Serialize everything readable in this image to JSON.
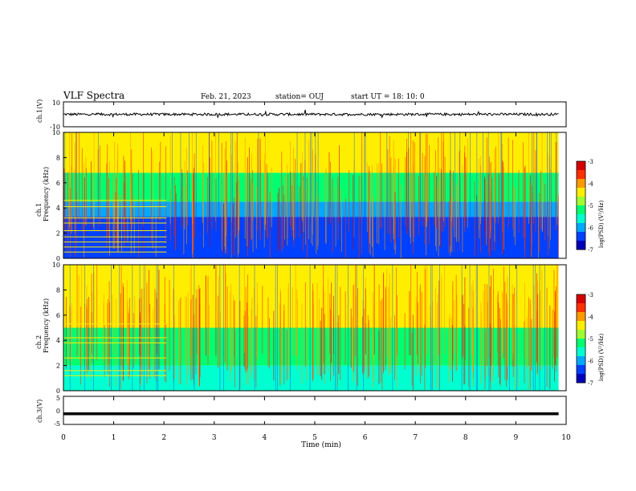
{
  "header": {
    "title": "VLF Spectra",
    "date": "Feb. 21, 2023",
    "station": "station= OUJ",
    "start": "start  UT  =   18: 10: 0"
  },
  "colorbar": {
    "label": "log(PSD) (V²/Hz)",
    "ticks": [
      "-3",
      "-4",
      "-5",
      "-6",
      "-7"
    ],
    "colors": [
      "#d40000",
      "#ff3000",
      "#ff9a00",
      "#ffee00",
      "#9fff30",
      "#00ff70",
      "#00ffd0",
      "#00a8ff",
      "#0040ff",
      "#0000b8"
    ]
  },
  "chart_data": [
    {
      "type": "line",
      "panel": "ch1-waveform",
      "ylabel": "ch.1(V)",
      "ylim": [
        -10,
        10
      ],
      "yticks": [
        "10",
        "-10"
      ],
      "xlim": [
        0,
        10
      ],
      "description_values": {
        "baseline": 0,
        "typical_noise_amplitude": 1
      }
    },
    {
      "type": "heatmap",
      "panel": "ch1-spectrogram",
      "ylabel": "ch.1 Frequency (kHz)",
      "ylim": [
        0,
        10
      ],
      "yticks": [
        "0",
        "2",
        "4",
        "6",
        "8",
        "10"
      ],
      "xlim": [
        0,
        9.85
      ],
      "color_scale": [
        -7,
        -3
      ],
      "bands_kHz": [
        [
          0,
          3.3,
          -6.6
        ],
        [
          3.3,
          4.5,
          -6.0
        ],
        [
          4.5,
          6.8,
          -5.2
        ],
        [
          6.8,
          10,
          -4.6
        ]
      ],
      "horizontal_lines_kHz": [
        0.5,
        0.9,
        1.3,
        1.7,
        2.2,
        2.8,
        3.2,
        4.1,
        4.6
      ],
      "segment_lines_until_min": 2.05
    },
    {
      "type": "heatmap",
      "panel": "ch2-spectrogram",
      "ylabel": "ch.2 Frequency (kHz)",
      "ylim": [
        0,
        10
      ],
      "yticks": [
        "0",
        "2",
        "4",
        "6",
        "8",
        "10"
      ],
      "xlim": [
        0,
        9.85
      ],
      "color_scale": [
        -7,
        -3
      ],
      "bands_kHz": [
        [
          0,
          2.0,
          -5.6
        ],
        [
          2.0,
          5.0,
          -5.3
        ],
        [
          5.0,
          10,
          -4.6
        ]
      ],
      "horizontal_lines_kHz": [
        1.2,
        1.6,
        2.6,
        3.8,
        4.2,
        5.3
      ],
      "segment_lines_until_min": 2.05
    },
    {
      "type": "line",
      "panel": "ch3-waveform",
      "ylabel": "ch.3(V)",
      "ylim": [
        -5,
        5
      ],
      "yticks": [
        "5",
        "0",
        "-5"
      ],
      "xlim": [
        0,
        9.85
      ],
      "values_constant": -1.2
    }
  ],
  "xaxis": {
    "label": "Time  (min)",
    "ticks": [
      "0",
      "1",
      "2",
      "3",
      "4",
      "5",
      "6",
      "7",
      "8",
      "9",
      "10"
    ]
  }
}
